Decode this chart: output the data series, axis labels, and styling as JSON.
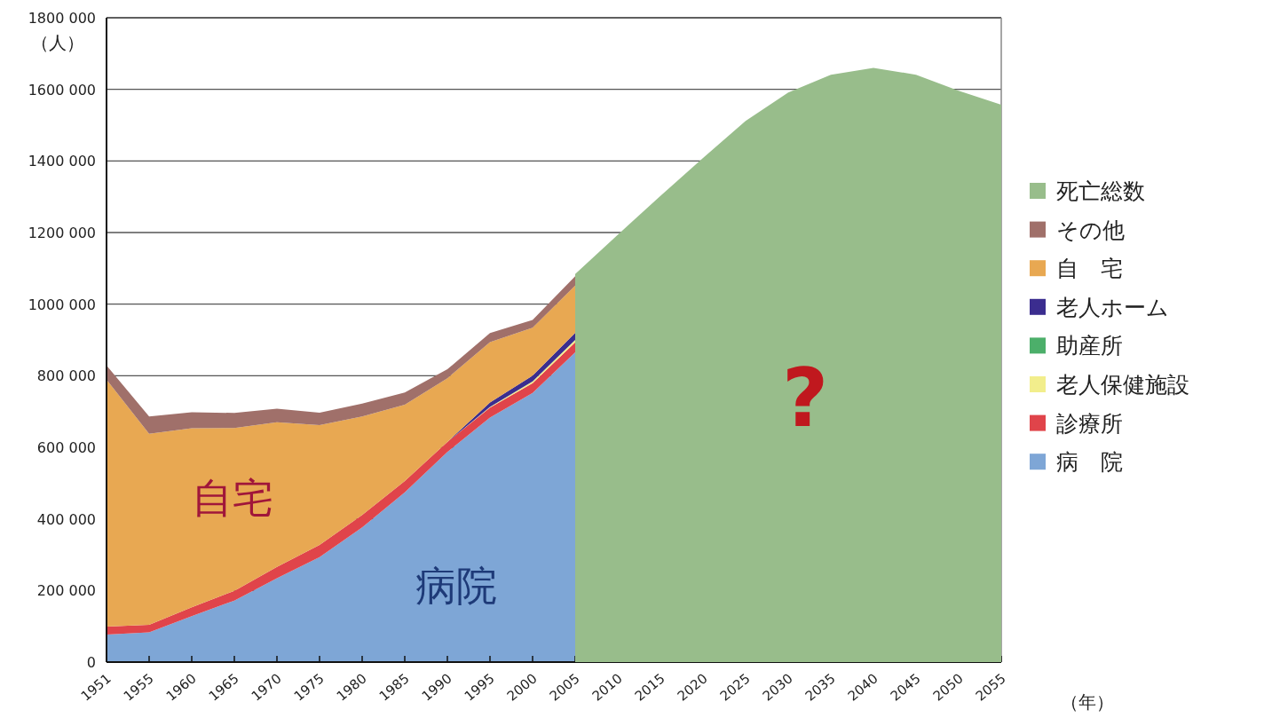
{
  "chart_data": [
    {
      "type": "area",
      "stacked": true,
      "categories": [
        "1951",
        "1955",
        "1960",
        "1965",
        "1970",
        "1975",
        "1980",
        "1985",
        "1990",
        "1995",
        "2000",
        "2005",
        "2010",
        "2015",
        "2020",
        "2025",
        "2030",
        "2035",
        "2040",
        "2045",
        "2050",
        "2055"
      ],
      "xlabel": "（年）",
      "ylabel": "（人）",
      "ylim": [
        0,
        1800000
      ],
      "yticks": [
        {
          "value": 0,
          "label": "0"
        },
        {
          "value": 200000,
          "label": "200 000"
        },
        {
          "value": 400000,
          "label": "400 000"
        },
        {
          "value": 600000,
          "label": "600 000"
        },
        {
          "value": 800000,
          "label": "800 000"
        },
        {
          "value": 1000000,
          "label": "1000 000"
        },
        {
          "value": 1200000,
          "label": "1200 000"
        },
        {
          "value": 1400000,
          "label": "1400 000"
        },
        {
          "value": 1600000,
          "label": "1600 000"
        },
        {
          "value": 1800000,
          "label": "1800 000"
        }
      ],
      "grid": "y",
      "legend": "right",
      "series": [
        {
          "name": "病　院",
          "color": "#7ea6d6",
          "values": [
            77000,
            83000,
            128000,
            172000,
            234000,
            293000,
            376000,
            474000,
            587000,
            683000,
            752000,
            865000,
            null,
            null,
            null,
            null,
            null,
            null,
            null,
            null,
            null,
            null
          ]
        },
        {
          "name": "診療所",
          "color": "#e0444a",
          "values": [
            22000,
            21000,
            25000,
            27000,
            32000,
            34000,
            35000,
            32000,
            28000,
            28000,
            27000,
            28000,
            null,
            null,
            null,
            null,
            null,
            null,
            null,
            null,
            null,
            null
          ]
        },
        {
          "name": "老人保健施設",
          "color": "#f2ee8c",
          "values": [
            0,
            0,
            0,
            0,
            0,
            0,
            0,
            0,
            0,
            2000,
            5000,
            7000,
            null,
            null,
            null,
            null,
            null,
            null,
            null,
            null,
            null,
            null
          ]
        },
        {
          "name": "助産所",
          "color": "#4caf6a",
          "values": [
            null,
            null,
            null,
            null,
            null,
            null,
            null,
            null,
            null,
            null,
            null,
            null,
            null,
            null,
            null,
            null,
            null,
            null,
            null,
            null,
            null,
            null
          ]
        },
        {
          "name": "老人ホーム",
          "color": "#3b2d8f",
          "values": [
            0,
            0,
            0,
            0,
            0,
            0,
            0,
            0,
            0,
            12000,
            16000,
            20000,
            null,
            null,
            null,
            null,
            null,
            null,
            null,
            null,
            null,
            null
          ]
        },
        {
          "name": "自　宅",
          "color": "#e8a852",
          "values": [
            690000,
            534000,
            500000,
            455000,
            404000,
            335000,
            275000,
            213000,
            178000,
            169000,
            134000,
            132000,
            null,
            null,
            null,
            null,
            null,
            null,
            null,
            null,
            null,
            null
          ]
        },
        {
          "name": "その他",
          "color": "#a0706a",
          "values": [
            40000,
            48000,
            45000,
            42000,
            38000,
            35000,
            36000,
            34000,
            25000,
            25000,
            22000,
            26000,
            null,
            null,
            null,
            null,
            null,
            null,
            null,
            null,
            null,
            null
          ]
        }
      ],
      "annotations": [
        "自宅",
        "病院"
      ]
    },
    {
      "type": "area",
      "tick_labels": false,
      "legend": "right",
      "categories": [
        "1951",
        "1955",
        "1960",
        "1965",
        "1970",
        "1975",
        "1980",
        "1985",
        "1990",
        "1995",
        "2000",
        "2005",
        "2010",
        "2015",
        "2020",
        "2025",
        "2030",
        "2035",
        "2040",
        "2045",
        "2050",
        "2055"
      ],
      "ylim": [
        0,
        1800000
      ],
      "series": [
        {
          "name": "死亡総数",
          "color": "#98bd8b",
          "values": [
            null,
            null,
            null,
            null,
            null,
            null,
            null,
            null,
            null,
            null,
            null,
            1084000,
            1194000,
            1302000,
            1408000,
            1512000,
            1591000,
            1641000,
            1660000,
            1641000,
            1596000,
            1557000
          ]
        }
      ],
      "annotations": [
        "?"
      ]
    }
  ]
}
